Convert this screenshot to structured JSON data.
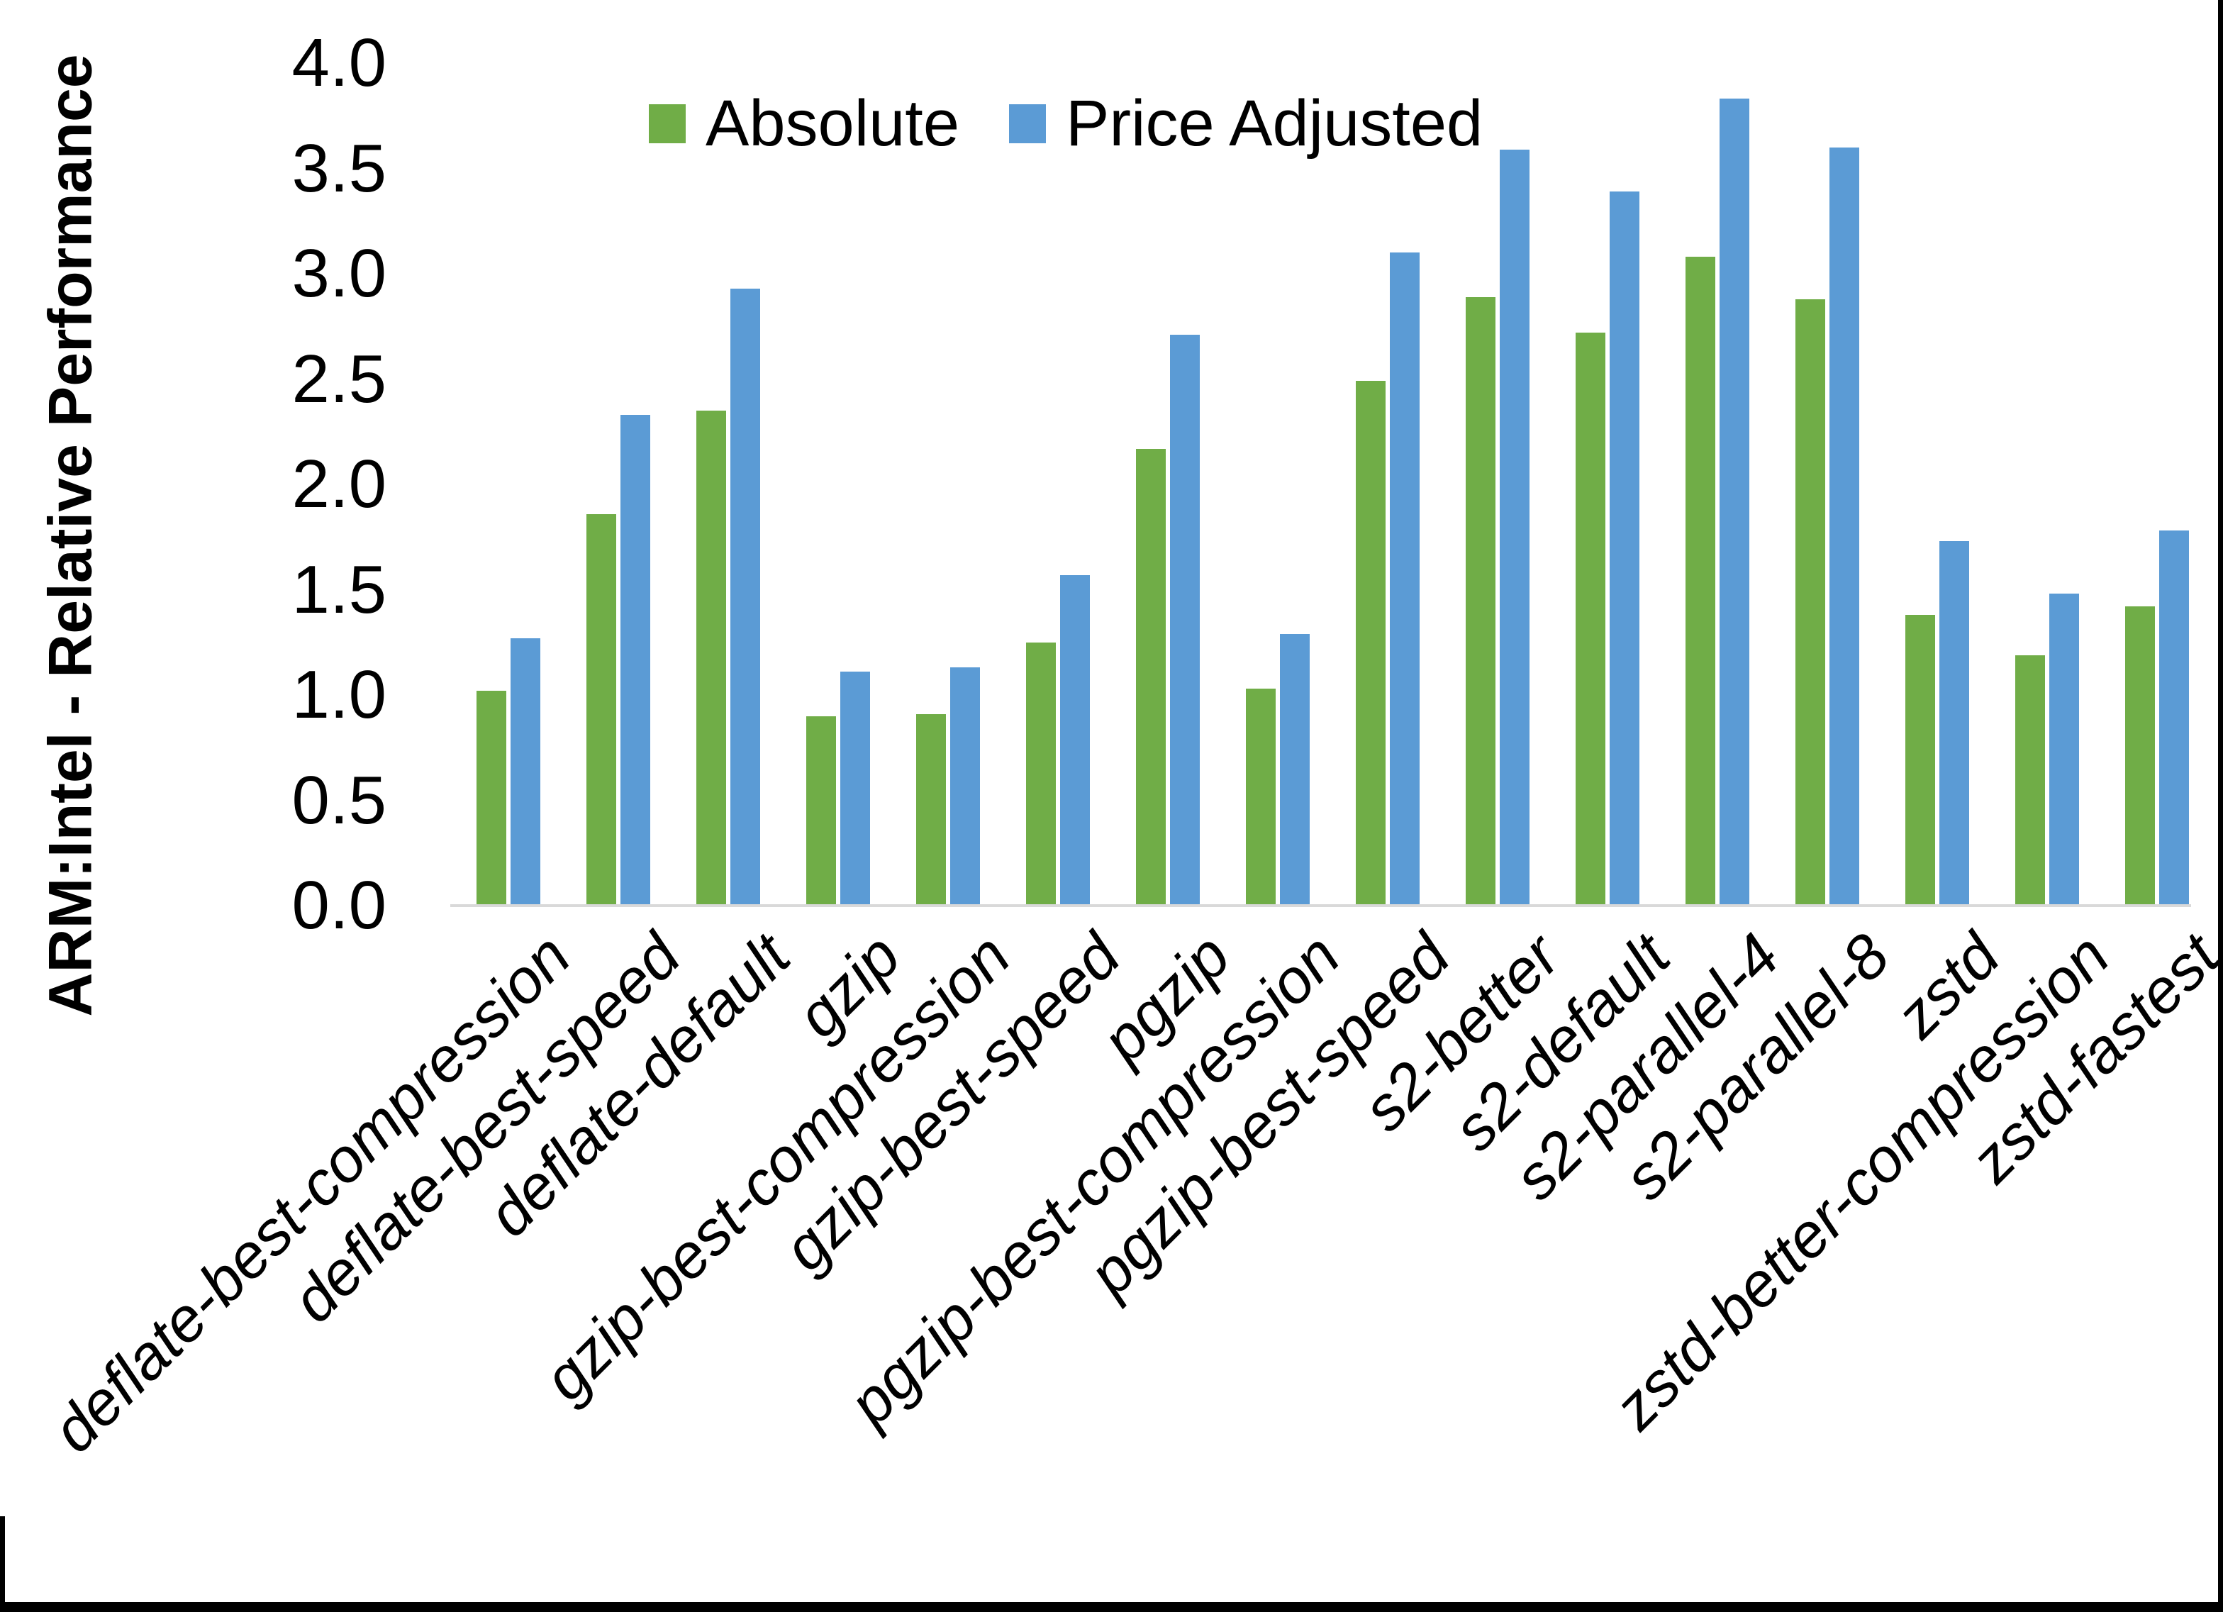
{
  "chart_data": {
    "type": "bar",
    "title": "",
    "xlabel": "",
    "ylabel": "ARM:Intel - Relative Performance",
    "ylim": [
      0.0,
      4.0
    ],
    "ytick_step": 0.5,
    "ytick_labels": [
      "0.0",
      "0.5",
      "1.0",
      "1.5",
      "2.0",
      "2.5",
      "3.0",
      "3.5",
      "4.0"
    ],
    "grid": false,
    "legend_position": "top-center",
    "categories": [
      "deflate-best-compression",
      "deflate-best-speed",
      "deflate-default",
      "gzip",
      "gzip-best-compression",
      "gzip-best-speed",
      "pgzip",
      "pgzip-best-compression",
      "pgzip-best-speed",
      "s2-better",
      "s2-default",
      "s2-parallel-4",
      "s2-parallel-8",
      "zstd",
      "zstd-better-compression",
      "zstd-fastest"
    ],
    "series": [
      {
        "name": "Absolute",
        "color": "#70AD47",
        "values": [
          1.02,
          1.86,
          2.35,
          0.9,
          0.91,
          1.25,
          2.17,
          1.03,
          2.49,
          2.89,
          2.72,
          3.08,
          2.88,
          1.38,
          1.19,
          1.42
        ]
      },
      {
        "name": "Price Adjusted",
        "color": "#5B9BD5",
        "values": [
          1.27,
          2.33,
          2.93,
          1.11,
          1.13,
          1.57,
          2.71,
          1.29,
          3.1,
          3.59,
          3.39,
          3.83,
          3.6,
          1.73,
          1.48,
          1.78
        ]
      }
    ]
  },
  "colors": {
    "background": "#FFFFFF",
    "axis_line": "#D9D9D9",
    "text": "#000000",
    "page_border": "#000000"
  }
}
